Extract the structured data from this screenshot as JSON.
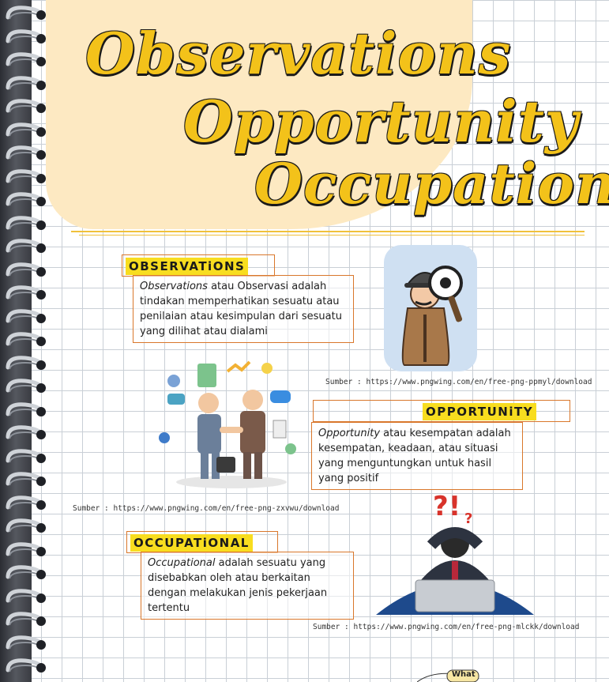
{
  "title": {
    "line1": "Observations",
    "line2": "Opportunity",
    "line3": "Occupational"
  },
  "sections": {
    "observations": {
      "label": "OBSERVATiONS",
      "term": "Observations",
      "text": " atau Observasi adalah tindakan memperhatikan sesuatu atau penilaian atau kesimpulan dari sesuatu yang dilihat atau dialami",
      "source": "Sumber : https://www.pngwing.com/en/free-png-ppmyl/download"
    },
    "opportunity": {
      "label": "OPPORTUNiTY",
      "term": "Opportunity",
      "text": " atau kesempatan adalah kesempatan, keadaan, atau situasi yang menguntungkan untuk hasil yang positif",
      "source": "Sumber : https://www.pngwing.com/en/free-png-zxvwu/download"
    },
    "occupational": {
      "label": "OCCUPATiONAL",
      "term": "Occupational",
      "text": " adalah sesuatu yang disebabkan oleh atau berkaitan dengan melakukan jenis pekerjaan tertentu",
      "source": "Sumber : https://www.pngwing.com/en/free-png-mlckk/download"
    }
  },
  "bubble": {
    "text": "What"
  },
  "colors": {
    "title_yellow": "#f3c21a",
    "label_yellow": "#f8dd1f",
    "box_border": "#d9772b",
    "blob": "#fde9c2"
  }
}
